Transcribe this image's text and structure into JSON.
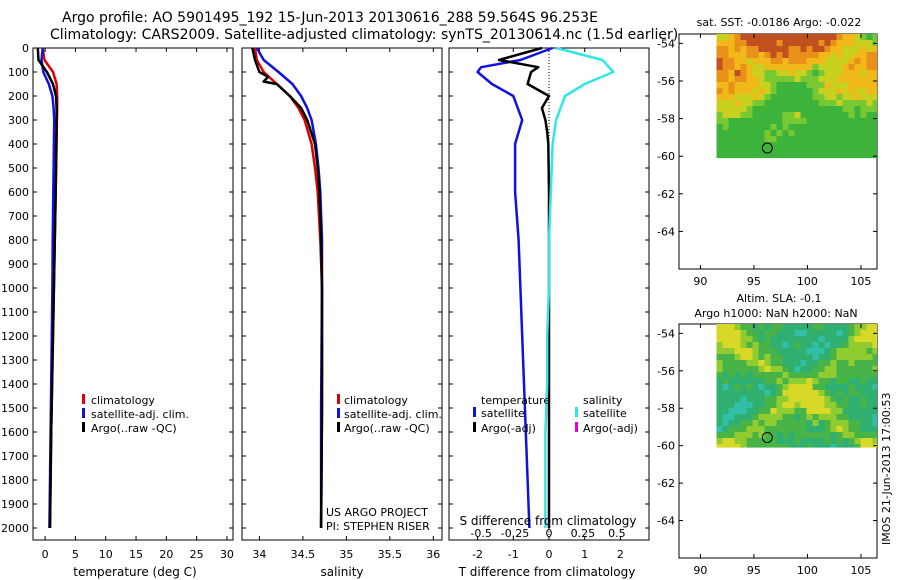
{
  "header": {
    "line1": "Argo profile: AO 5901495_192 15-Jun-2013 20130616_288 59.564S 96.253E",
    "line2": "Climatology: CARS2009. Satellite-adjusted climatology: synTS_20130614.nc (1.5d earlier)"
  },
  "colors": {
    "climatology": "#e00000",
    "satellite": "#1010e0",
    "argo": "#000000",
    "satellite_s": "#33e6e6",
    "argo_adj_s": "#e000e0"
  },
  "chart_data": [
    {
      "id": "temperature",
      "type": "line",
      "xlabel": "temperature (deg C)",
      "ylabel": "",
      "xlim": [
        -2,
        31
      ],
      "ylim": [
        2050,
        0
      ],
      "xticks": [
        "0",
        "5",
        "10",
        "15",
        "20",
        "25",
        "30"
      ],
      "xtick_values": [
        0,
        5,
        10,
        15,
        20,
        25,
        30
      ],
      "yticks": [
        "0",
        "100",
        "200",
        "300",
        "400",
        "500",
        "600",
        "700",
        "800",
        "900",
        "1000",
        "1100",
        "1200",
        "1300",
        "1400",
        "1500",
        "1600",
        "1700",
        "1800",
        "1900",
        "2000"
      ],
      "ytick_values": [
        0,
        100,
        200,
        300,
        400,
        500,
        600,
        700,
        800,
        900,
        1000,
        1100,
        1200,
        1300,
        1400,
        1500,
        1600,
        1700,
        1800,
        1900,
        2000
      ],
      "legend": [
        "climatology",
        "satellite-adj. clim.",
        "Argo(..raw -QC)"
      ],
      "series": [
        {
          "name": "climatology",
          "depth": [
            0,
            50,
            100,
            150,
            200,
            250,
            300,
            400,
            600,
            800,
            1000,
            1200,
            1400,
            1600,
            1800,
            2000
          ],
          "values": [
            -0.4,
            -0.1,
            1.3,
            1.9,
            2.0,
            2.0,
            1.95,
            1.9,
            1.75,
            1.6,
            1.45,
            1.3,
            1.15,
            1.0,
            0.9,
            0.8
          ]
        },
        {
          "name": "satellite",
          "depth": [
            0,
            50,
            100,
            150,
            200,
            250,
            300,
            400,
            600,
            800,
            1000,
            1200,
            1400,
            1600,
            1800,
            2000
          ],
          "values": [
            -0.4,
            -0.6,
            -0.3,
            0.6,
            1.2,
            1.4,
            1.5,
            1.45,
            1.35,
            1.25,
            1.2,
            1.1,
            1.0,
            0.9,
            0.8,
            0.7
          ]
        },
        {
          "name": "argo",
          "depth": [
            0,
            50,
            100,
            150,
            200,
            250,
            300,
            400,
            600,
            800,
            1000,
            1200,
            1400,
            1600,
            1800,
            2000
          ],
          "values": [
            -1.2,
            -1.1,
            0.3,
            1.3,
            1.8,
            1.9,
            1.9,
            1.85,
            1.75,
            1.6,
            1.45,
            1.3,
            1.15,
            1.0,
            0.9,
            0.8
          ]
        }
      ]
    },
    {
      "id": "salinity",
      "type": "line",
      "xlabel": "salinity",
      "xlim": [
        33.8,
        36.1
      ],
      "ylim": [
        2050,
        0
      ],
      "xticks": [
        "34",
        "34.5",
        "35",
        "35.5",
        "36"
      ],
      "xtick_values": [
        34,
        34.5,
        35,
        35.5,
        36
      ],
      "legend": [
        "climatology",
        "satellite-adj. clim.",
        "Argo(..raw -QC)"
      ],
      "annotation": [
        "US ARGO PROJECT",
        "PI: STEPHEN RISER"
      ],
      "series": [
        {
          "name": "climatology",
          "depth": [
            0,
            50,
            100,
            150,
            200,
            250,
            300,
            400,
            500,
            600,
            800,
            1000,
            1500,
            2000
          ],
          "values": [
            33.95,
            33.97,
            34.05,
            34.2,
            34.35,
            34.45,
            34.52,
            34.6,
            34.64,
            34.67,
            34.7,
            34.72,
            34.72,
            34.71
          ]
        },
        {
          "name": "satellite",
          "depth": [
            0,
            50,
            100,
            150,
            200,
            250,
            300,
            400,
            500,
            600,
            800,
            1000,
            1500,
            2000
          ],
          "values": [
            33.97,
            34.05,
            34.22,
            34.38,
            34.48,
            34.55,
            34.6,
            34.65,
            34.68,
            34.7,
            34.72,
            34.72,
            34.71,
            34.71
          ]
        },
        {
          "name": "argo",
          "depth": [
            0,
            50,
            100,
            120,
            140,
            150,
            200,
            250,
            300,
            400,
            500,
            600,
            800,
            1000,
            1500,
            2000
          ],
          "values": [
            33.92,
            33.95,
            34.0,
            34.1,
            34.05,
            34.2,
            34.35,
            34.48,
            34.55,
            34.64,
            34.67,
            34.69,
            34.71,
            34.72,
            34.72,
            34.71
          ]
        }
      ]
    },
    {
      "id": "difference",
      "type": "line",
      "xlabel": "T difference from climatology",
      "top_label": "S difference from climatology",
      "xlim": [
        -2.8,
        2.8
      ],
      "ylim": [
        2050,
        0
      ],
      "xticks": [
        "-2",
        "-1",
        "0",
        "1",
        "2"
      ],
      "xtick_values": [
        -2,
        -1,
        0,
        1,
        2
      ],
      "sticks": [
        "-0.5",
        "-0.25",
        "0",
        "0.25",
        "0.5"
      ],
      "stick_values": [
        -1.9,
        -0.95,
        0,
        0.95,
        1.9
      ],
      "legend_headers": [
        "temperature",
        "salinity"
      ],
      "legend_left": [
        "satellite",
        "Argo(-adj)"
      ],
      "legend_right": [
        "satellite",
        "Argo(-adj)"
      ],
      "series": [
        {
          "name": "T satellite",
          "depth": [
            0,
            50,
            80,
            100,
            150,
            200,
            300,
            400,
            600,
            800,
            1000,
            1200,
            1400,
            1600,
            1800,
            2000
          ],
          "values": [
            0.1,
            -0.8,
            -1.9,
            -2.0,
            -1.6,
            -1.0,
            -0.75,
            -0.95,
            -0.95,
            -0.85,
            -0.8,
            -0.75,
            -0.7,
            -0.65,
            -0.6,
            -0.55
          ]
        },
        {
          "name": "T argo",
          "depth": [
            0,
            50,
            80,
            100,
            150,
            200,
            250,
            300,
            350,
            400,
            600,
            800,
            1000,
            1500,
            2000
          ],
          "values": [
            -0.2,
            -1.4,
            -0.3,
            -0.5,
            -0.6,
            0.0,
            -0.2,
            -0.1,
            -0.05,
            -0.02,
            0.0,
            0.0,
            0.0,
            0.0,
            0.0
          ]
        },
        {
          "name": "S satellite",
          "depth": [
            0,
            50,
            100,
            150,
            200,
            300,
            400,
            600,
            800,
            1000,
            1200,
            1400,
            1600,
            1800,
            2000
          ],
          "values": [
            0.2,
            1.5,
            1.8,
            1.0,
            0.45,
            0.2,
            0.1,
            0.05,
            0.0,
            0.0,
            -0.05,
            -0.05,
            -0.1,
            -0.1,
            -0.1
          ]
        }
      ]
    }
  ],
  "maps": [
    {
      "id": "sst",
      "title": "sat. SST: -0.0186 Argo: -0.022",
      "subtitle": "",
      "xticks": [
        "90",
        "95",
        "100",
        "105"
      ],
      "xtick_values": [
        90,
        95,
        100,
        105
      ],
      "yticks": [
        "-54",
        "-56",
        "-58",
        "-60",
        "-62",
        "-64"
      ],
      "ytick_values": [
        -54,
        -56,
        -58,
        -60,
        -62,
        -64
      ],
      "marker_lon": 96.253,
      "marker_lat": -59.564,
      "xlim": [
        88,
        106.5
      ],
      "ylim": [
        -53.5,
        -66
      ]
    },
    {
      "id": "sla",
      "title": "Altim. SLA: -0.1",
      "subtitle": "Argo h1000: NaN h2000: NaN",
      "xticks": [
        "90",
        "95",
        "100",
        "105"
      ],
      "xtick_values": [
        90,
        95,
        100,
        105
      ],
      "yticks": [
        "-54",
        "-56",
        "-58",
        "-60",
        "-62",
        "-64"
      ],
      "ytick_values": [
        -54,
        -56,
        -58,
        -60,
        -62,
        -64
      ],
      "marker_lon": 96.253,
      "marker_lat": -59.564,
      "xlim": [
        88,
        106.5
      ],
      "ylim": [
        -53.5,
        -66
      ]
    }
  ],
  "footer": {
    "stamp": "IMOS 21-Jun-2013 17:00:53"
  }
}
